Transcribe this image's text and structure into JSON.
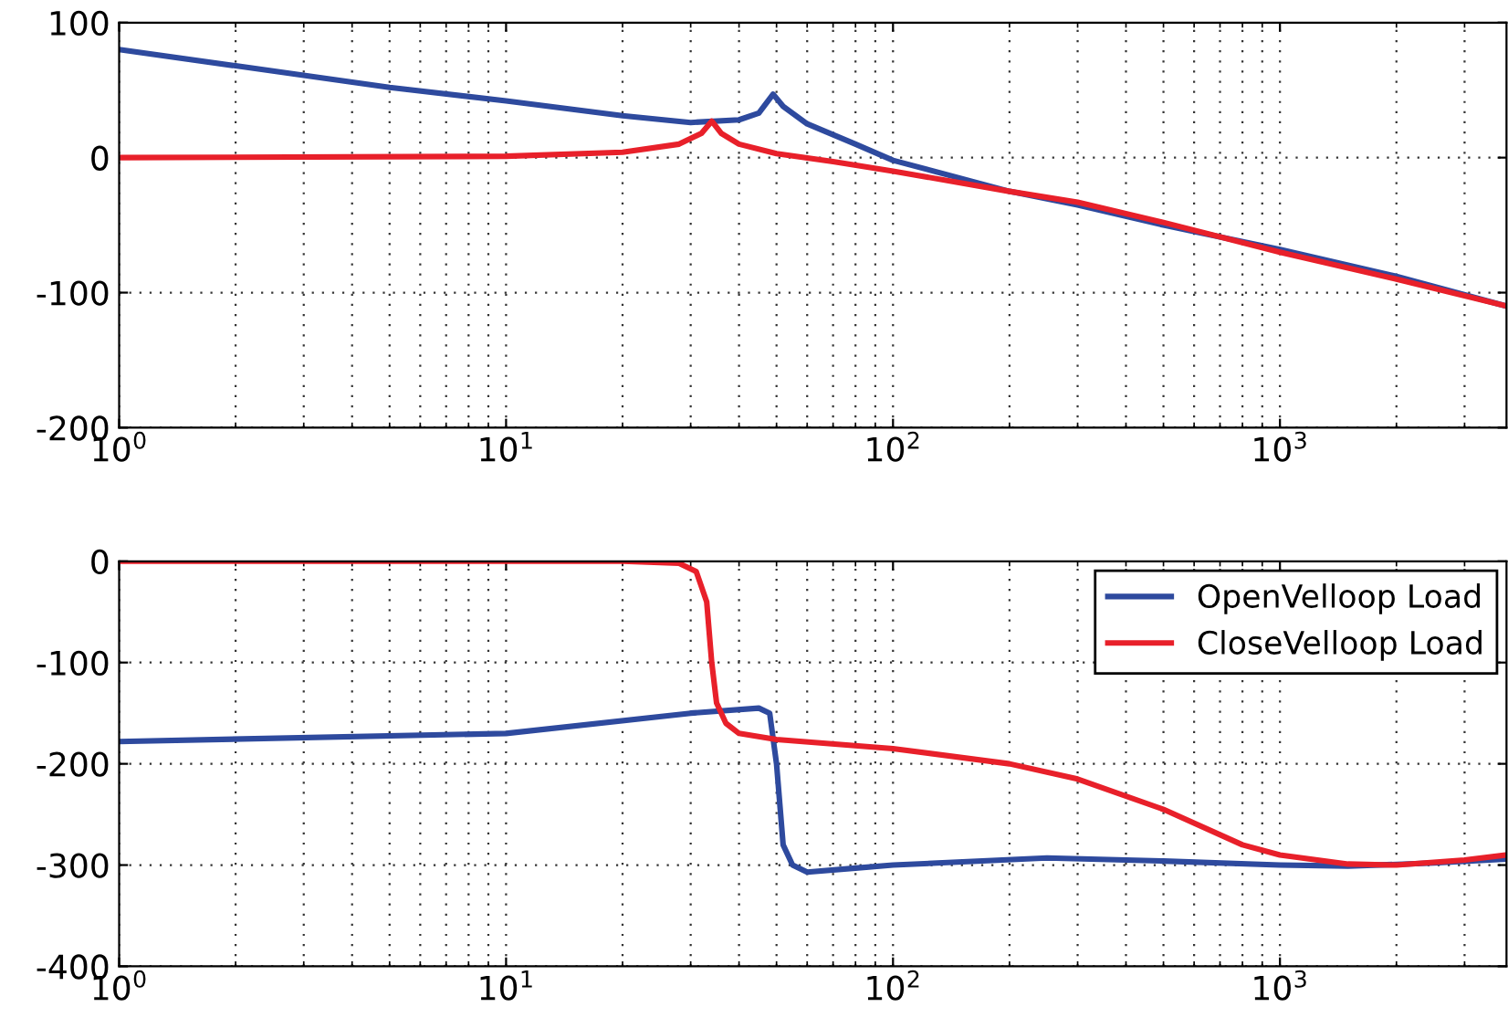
{
  "chart_data": [
    {
      "type": "line",
      "log": "x",
      "grid": true,
      "legend": false,
      "xlim": [
        1,
        3850
      ],
      "xticks": [
        {
          "value": 1,
          "label": "10$^{0}$"
        },
        {
          "value": 10,
          "label": "10$^{1}$"
        },
        {
          "value": 100,
          "label": "10$^{2}$"
        },
        {
          "value": 1000,
          "label": "10$^{3}$"
        }
      ],
      "ylim": [
        -200,
        100
      ],
      "yticks": [
        -200,
        -100,
        0,
        100
      ],
      "series": [
        {
          "color": "#2e4a9e",
          "x": [
            1,
            2,
            5,
            10,
            20,
            30,
            40,
            45,
            49,
            52,
            60,
            80,
            100,
            200,
            300,
            500,
            1000,
            2000,
            3850
          ],
          "values": [
            80,
            68,
            52,
            42,
            31,
            26,
            28,
            33,
            47,
            38,
            25,
            10,
            -2,
            -25,
            -35,
            -50,
            -68,
            -88,
            -110
          ]
        },
        {
          "color": "#e8202a",
          "x": [
            1,
            10,
            20,
            28,
            32,
            34,
            36,
            40,
            50,
            70,
            100,
            200,
            300,
            500,
            1000,
            2000,
            3850
          ],
          "values": [
            0,
            1,
            4,
            10,
            18,
            27,
            18,
            10,
            3,
            -3,
            -10,
            -25,
            -33,
            -48,
            -70,
            -90,
            -110
          ]
        }
      ]
    },
    {
      "type": "line",
      "log": "x",
      "grid": true,
      "legend": "top right",
      "xlim": [
        1,
        3850
      ],
      "xticks": [
        {
          "value": 1,
          "label": "10$^{0}$"
        },
        {
          "value": 10,
          "label": "10$^{1}$"
        },
        {
          "value": 100,
          "label": "10$^{2}$"
        },
        {
          "value": 1000,
          "label": "10$^{3}$"
        }
      ],
      "ylim": [
        -400,
        0
      ],
      "yticks": [
        -400,
        -300,
        -200,
        -100,
        0
      ],
      "series": [
        {
          "name": "OpenVelloop Load",
          "color": "#2e4a9e",
          "x": [
            1,
            10,
            30,
            45,
            48,
            50,
            52,
            55,
            60,
            80,
            100,
            250,
            500,
            1000,
            1500,
            2500,
            3850
          ],
          "values": [
            -178,
            -170,
            -150,
            -145,
            -150,
            -200,
            -280,
            -300,
            -307,
            -303,
            -300,
            -293,
            -296,
            -300,
            -301,
            -298,
            -294
          ]
        },
        {
          "name": "CloseVelloop Load",
          "color": "#e8202a",
          "x": [
            1,
            20,
            28,
            31,
            33,
            34,
            35,
            37,
            40,
            50,
            100,
            200,
            300,
            500,
            800,
            1000,
            1500,
            2000,
            3000,
            3850
          ],
          "values": [
            0,
            0,
            -2,
            -10,
            -40,
            -100,
            -140,
            -160,
            -170,
            -176,
            -185,
            -200,
            -215,
            -245,
            -280,
            -290,
            -299,
            -300,
            -295,
            -290
          ]
        }
      ]
    }
  ]
}
